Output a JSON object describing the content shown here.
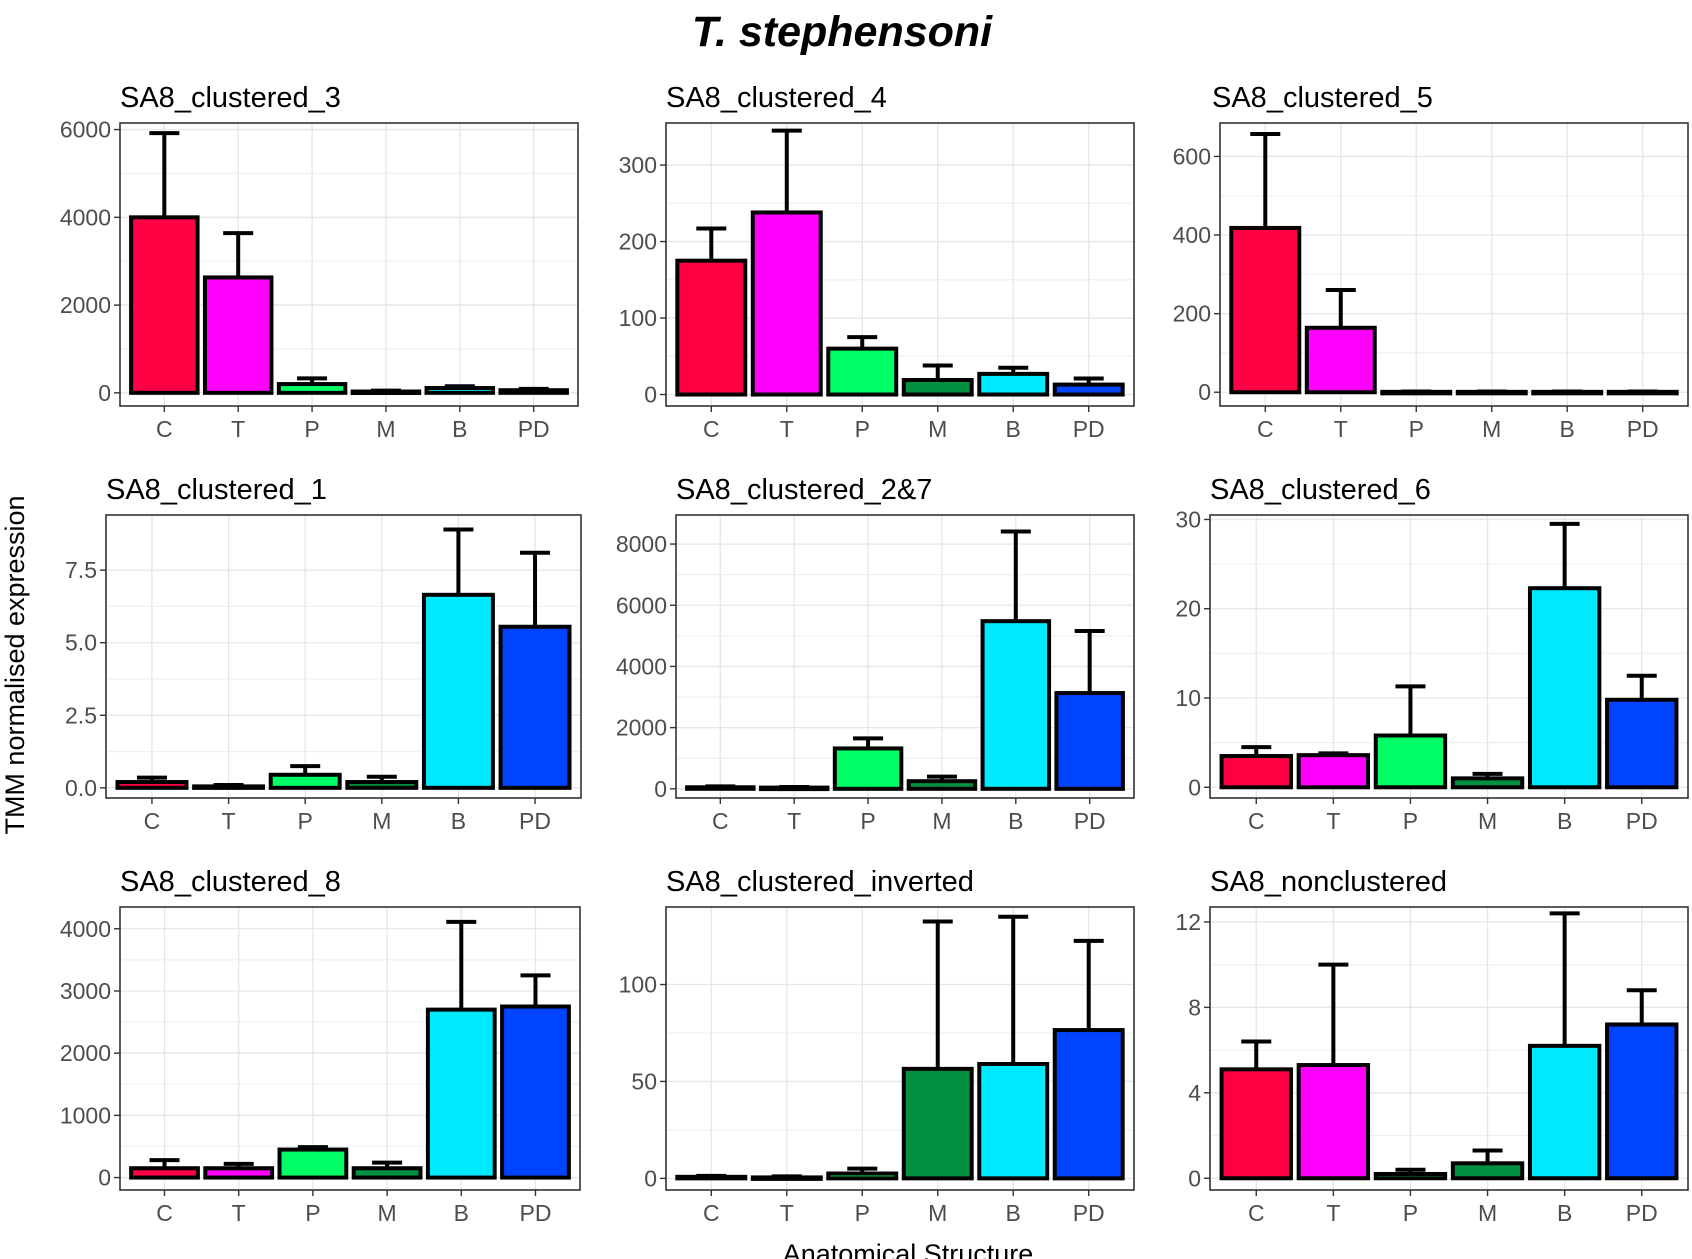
{
  "chart_data": {
    "type": "bar",
    "title": "T. stephensoni",
    "xlabel": "Anatomical Structure",
    "ylabel": "TMM normalised expression",
    "categories": [
      "C",
      "T",
      "P",
      "M",
      "B",
      "PD"
    ],
    "colors": {
      "C": "#ff0044",
      "T": "#ff00ff",
      "P": "#00ff66",
      "M": "#00903f",
      "B": "#00eaff",
      "PD": "#0044ff"
    },
    "panels": [
      {
        "name": "SA8_clustered_3",
        "ylim": [
          -300,
          6150
        ],
        "yticks": [
          0,
          2000,
          4000,
          6000
        ],
        "tick_labels": [
          "0",
          "2000",
          "4000",
          "6000"
        ],
        "values": [
          4000,
          2630,
          200,
          30,
          110,
          60
        ],
        "errors": [
          1920,
          1010,
          130,
          20,
          40,
          30
        ]
      },
      {
        "name": "SA8_clustered_4",
        "ylim": [
          -15,
          355
        ],
        "yticks": [
          0,
          100,
          200,
          300
        ],
        "tick_labels": [
          "0",
          "100",
          "200",
          "300"
        ],
        "values": [
          175,
          238,
          60,
          19,
          27,
          13
        ],
        "errors": [
          42,
          107,
          15,
          19,
          8,
          8
        ]
      },
      {
        "name": "SA8_clustered_5",
        "ylim": [
          -35,
          685
        ],
        "yticks": [
          0,
          200,
          400,
          600
        ],
        "tick_labels": [
          "0",
          "200",
          "400",
          "600"
        ],
        "values": [
          418,
          164,
          1,
          1,
          1,
          1
        ],
        "errors": [
          239,
          96,
          1,
          1,
          1,
          1
        ]
      },
      {
        "name": "SA8_clustered_1",
        "ylim": [
          -0.35,
          9.4
        ],
        "yticks": [
          0,
          2.5,
          5.0,
          7.5
        ],
        "tick_labels": [
          "0.0",
          "2.5",
          "5.0",
          "7.5"
        ],
        "values": [
          0.2,
          0.05,
          0.45,
          0.2,
          6.65,
          5.55
        ],
        "errors": [
          0.15,
          0.05,
          0.3,
          0.18,
          2.25,
          2.55
        ]
      },
      {
        "name": "SA8_clustered_2&7",
        "ylim": [
          -300,
          8950
        ],
        "yticks": [
          0,
          2000,
          4000,
          6000,
          8000
        ],
        "tick_labels": [
          "0",
          "2000",
          "4000",
          "6000",
          "8000"
        ],
        "values": [
          50,
          40,
          1320,
          250,
          5480,
          3130
        ],
        "errors": [
          30,
          20,
          330,
          150,
          2930,
          2030
        ]
      },
      {
        "name": "SA8_clustered_6",
        "ylim": [
          -1.2,
          30.5
        ],
        "yticks": [
          0,
          10,
          20,
          30
        ],
        "tick_labels": [
          "0",
          "10",
          "20",
          "30"
        ],
        "values": [
          3.5,
          3.6,
          5.8,
          1.0,
          22.3,
          9.8
        ],
        "errors": [
          1.0,
          0.2,
          5.5,
          0.5,
          7.2,
          2.7
        ]
      },
      {
        "name": "SA8_clustered_8",
        "ylim": [
          -200,
          4350
        ],
        "yticks": [
          0,
          1000,
          2000,
          3000,
          4000
        ],
        "tick_labels": [
          "0",
          "1000",
          "2000",
          "3000",
          "4000"
        ],
        "values": [
          150,
          150,
          450,
          150,
          2700,
          2750
        ],
        "errors": [
          130,
          70,
          40,
          90,
          1410,
          500
        ]
      },
      {
        "name": "SA8_clustered_inverted",
        "ylim": [
          -6,
          140
        ],
        "yticks": [
          0,
          50,
          100
        ],
        "tick_labels": [
          "0",
          "50",
          "100"
        ],
        "values": [
          0.8,
          0.5,
          2.5,
          56.5,
          59,
          76.5
        ],
        "errors": [
          0.5,
          0.5,
          2.5,
          76,
          76,
          46
        ]
      },
      {
        "name": "SA8_nonclustered",
        "ylim": [
          -0.55,
          12.7
        ],
        "yticks": [
          0,
          4,
          8,
          12
        ],
        "tick_labels": [
          "0",
          "4",
          "8",
          "12"
        ],
        "values": [
          5.1,
          5.3,
          0.2,
          0.7,
          6.2,
          7.2
        ],
        "errors": [
          1.3,
          4.7,
          0.2,
          0.6,
          6.2,
          1.6
        ]
      }
    ]
  }
}
